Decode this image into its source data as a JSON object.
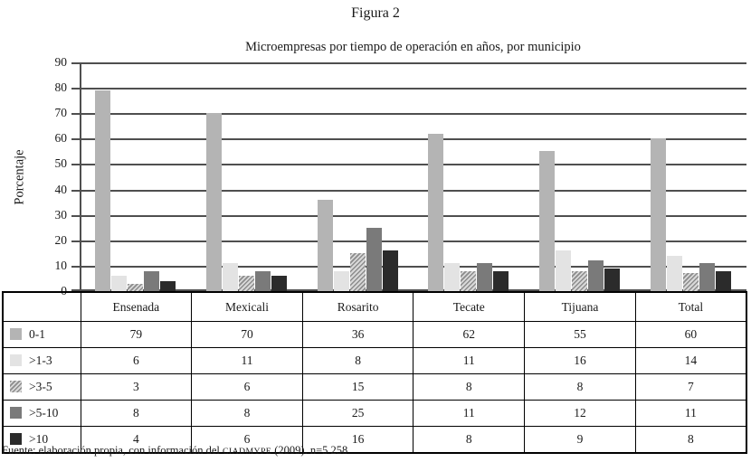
{
  "figure": {
    "title": "Figura 2"
  },
  "chart_data": {
    "type": "bar",
    "title": "Microempresas por tiempo de operación en años, por municipio",
    "xlabel": "",
    "ylabel": "Porcentaje",
    "ylim": [
      0,
      90
    ],
    "ytick_step": 10,
    "grid": true,
    "legend_position": "table-rows-left",
    "categories": [
      "Ensenada",
      "Mexicali",
      "Rosarito",
      "Tecate",
      "Tijuana",
      "Total"
    ],
    "series": [
      {
        "name": "0-1",
        "values": [
          79,
          70,
          36,
          62,
          55,
          60
        ],
        "color": "#b4b4b4",
        "pattern": "solid"
      },
      {
        "name": ">1-3",
        "values": [
          6,
          11,
          8,
          11,
          16,
          14
        ],
        "color": "#e3e3e3",
        "pattern": "solid"
      },
      {
        "name": ">3-5",
        "values": [
          3,
          6,
          15,
          8,
          8,
          7
        ],
        "color": "#a0a0a0",
        "pattern": "diagonal-hatch",
        "hatch_fg": "#8c8c8c",
        "hatch_bg": "#d8d8d8"
      },
      {
        "name": ">5-10",
        "values": [
          8,
          8,
          25,
          11,
          12,
          11
        ],
        "color": "#7a7a7a",
        "pattern": "solid"
      },
      {
        "name": ">10",
        "values": [
          4,
          6,
          16,
          8,
          9,
          8
        ],
        "color": "#2b2b2b",
        "pattern": "solid"
      }
    ]
  },
  "table": {
    "corner_label": ""
  },
  "source": {
    "prefix": "Fuente: elaboración propia, con información del ",
    "acronym": "CIADMYPE",
    "suffix": " (2009). n=5 258"
  },
  "colors": {
    "gridline": "#4f4f4f",
    "axis": "#4f4f4f",
    "table_border": "#000000",
    "text": "#1a1a1a",
    "background": "#ffffff"
  }
}
